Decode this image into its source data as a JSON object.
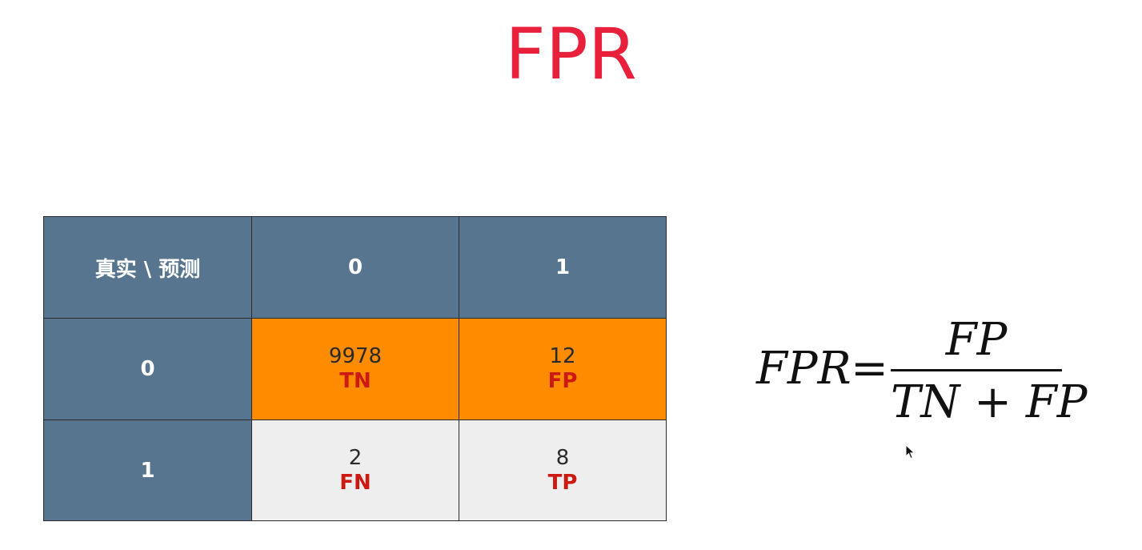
{
  "title": "FPR",
  "matrix": {
    "corner": "真实 \\ 预测",
    "col_headers": [
      "0",
      "1"
    ],
    "rows": [
      {
        "header": "0",
        "cells": [
          {
            "value": "9978",
            "label": "TN"
          },
          {
            "value": "12",
            "label": "FP"
          }
        ]
      },
      {
        "header": "1",
        "cells": [
          {
            "value": "2",
            "label": "FN"
          },
          {
            "value": "8",
            "label": "TP"
          }
        ]
      }
    ]
  },
  "formula": {
    "lhs": "FPR",
    "eq": "=",
    "numerator": "FP",
    "denominator": "TN + FP"
  },
  "colors": {
    "title": "#e8203c",
    "header_bg": "#58758f",
    "highlight_bg": "#ff8c00",
    "neutral_bg": "#eeeeee",
    "label_text": "#cc1a12"
  },
  "icons": {
    "cursor": "mouse-pointer-icon"
  }
}
